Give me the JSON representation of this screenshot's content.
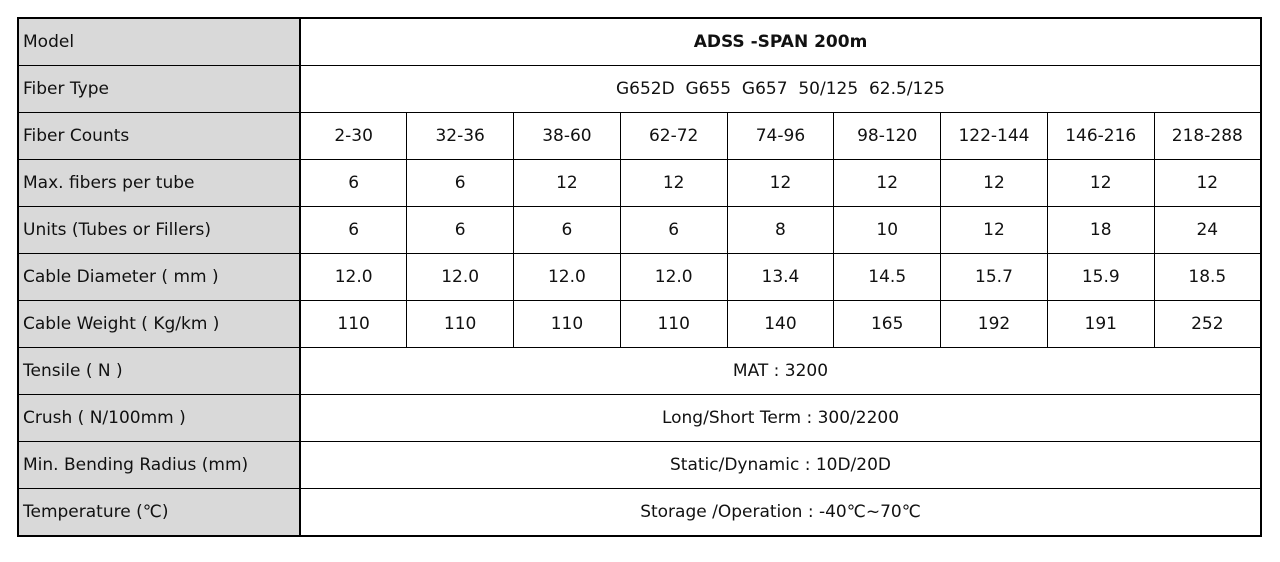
{
  "table": {
    "rows": [
      {
        "label": "Model",
        "value": "ADSS -SPAN 200m"
      },
      {
        "label": "Fiber Type",
        "value": "G652D  G655  G657  50/125  62.5/125"
      },
      {
        "label": "Fiber Counts",
        "cells": [
          "2-30",
          "32-36",
          "38-60",
          "62-72",
          "74-96",
          "98-120",
          "122-144",
          "146-216",
          "218-288"
        ]
      },
      {
        "label": "Max. fibers per tube",
        "cells": [
          "6",
          "6",
          "12",
          "12",
          "12",
          "12",
          "12",
          "12",
          "12"
        ]
      },
      {
        "label": "Units (Tubes or Fillers)",
        "cells": [
          "6",
          "6",
          "6",
          "6",
          "8",
          "10",
          "12",
          "18",
          "24"
        ]
      },
      {
        "label": "Cable Diameter ( mm )",
        "cells": [
          "12.0",
          "12.0",
          "12.0",
          "12.0",
          "13.4",
          "14.5",
          "15.7",
          "15.9",
          "18.5"
        ]
      },
      {
        "label": "Cable Weight ( Kg/km )",
        "cells": [
          "110",
          "110",
          "110",
          "110",
          "140",
          "165",
          "192",
          "191",
          "252"
        ]
      },
      {
        "label": "Tensile ( N )",
        "value": "MAT : 3200"
      },
      {
        "label": "Crush ( N/100mm )",
        "value": "Long/Short Term : 300/2200"
      },
      {
        "label": "Min. Bending Radius (mm)",
        "value": "Static/Dynamic : 10D/20D"
      },
      {
        "label": "Temperature (℃)",
        "value": "Storage /Operation : -40℃~70℃"
      }
    ]
  }
}
